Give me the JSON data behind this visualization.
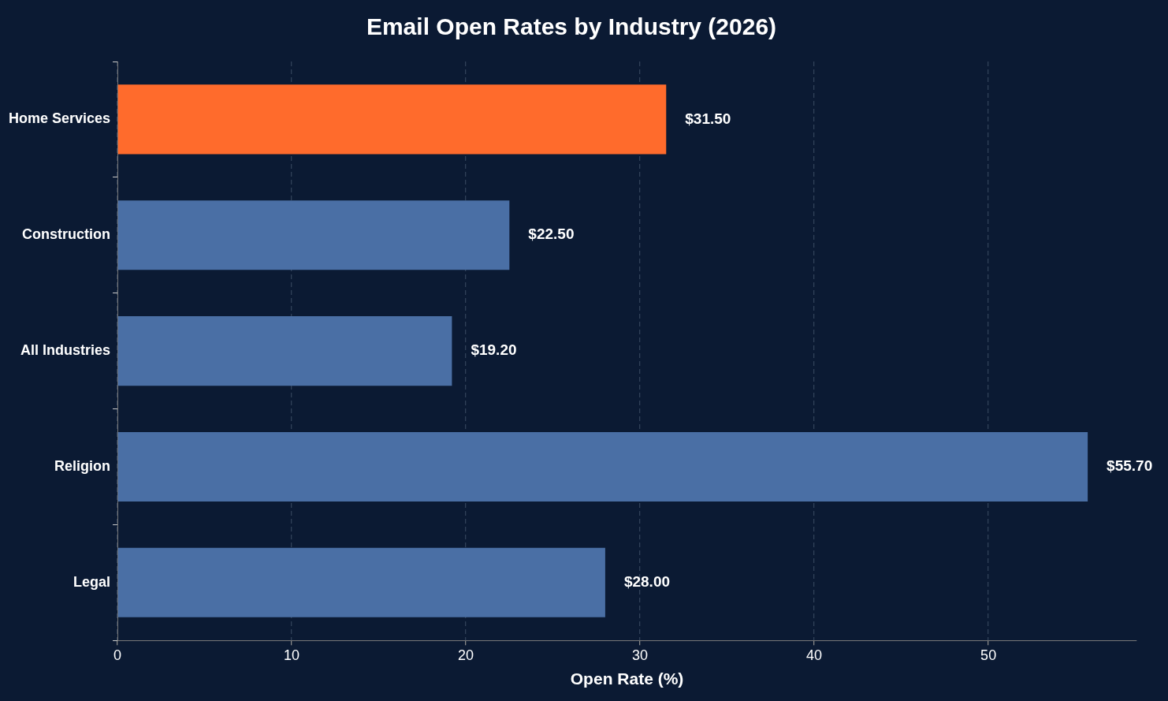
{
  "chart_data": {
    "type": "bar",
    "orientation": "horizontal",
    "title": "Email Open Rates by Industry (2026)",
    "xlabel": "Open Rate (%)",
    "categories": [
      "Home Services",
      "Construction",
      "All Industries",
      "Religion",
      "Legal"
    ],
    "values": [
      31.5,
      22.5,
      19.2,
      55.7,
      28.0
    ],
    "colors": [
      "#ff6b2c",
      "#4a6fa5",
      "#4a6fa5",
      "#4a6fa5",
      "#4a6fa5"
    ],
    "value_labels": [
      "$31.50",
      "$22.50",
      "$19.20",
      "$55.70",
      "$28.00"
    ],
    "xlim": [
      0,
      58.5
    ],
    "xticks": [
      0,
      10,
      20,
      30,
      40,
      50
    ],
    "grid": "x",
    "legend": false
  }
}
